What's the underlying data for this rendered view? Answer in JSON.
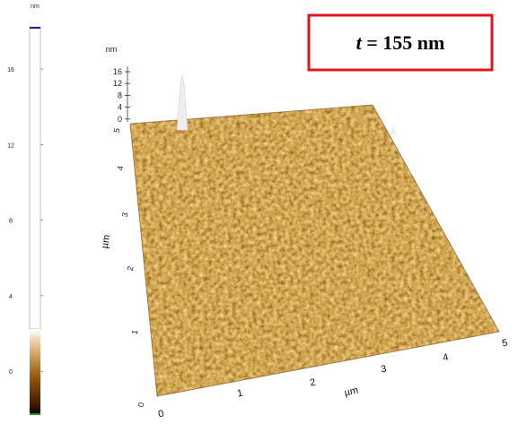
{
  "colorbar": {
    "unit": "nm",
    "ticks": [
      "16",
      "12",
      "8",
      "4",
      "0"
    ]
  },
  "z_axis": {
    "unit": "nm",
    "ticks": [
      "16",
      "12",
      "8",
      "4",
      "0"
    ]
  },
  "y_axis": {
    "unit": "µm",
    "ticks": [
      "0",
      "1",
      "2",
      "3",
      "4",
      "5"
    ]
  },
  "x_axis": {
    "unit": "µm",
    "ticks": [
      "0",
      "1",
      "2",
      "3",
      "4",
      "5"
    ]
  },
  "label": {
    "variable": "t",
    "rest": "= 155 nm"
  }
}
